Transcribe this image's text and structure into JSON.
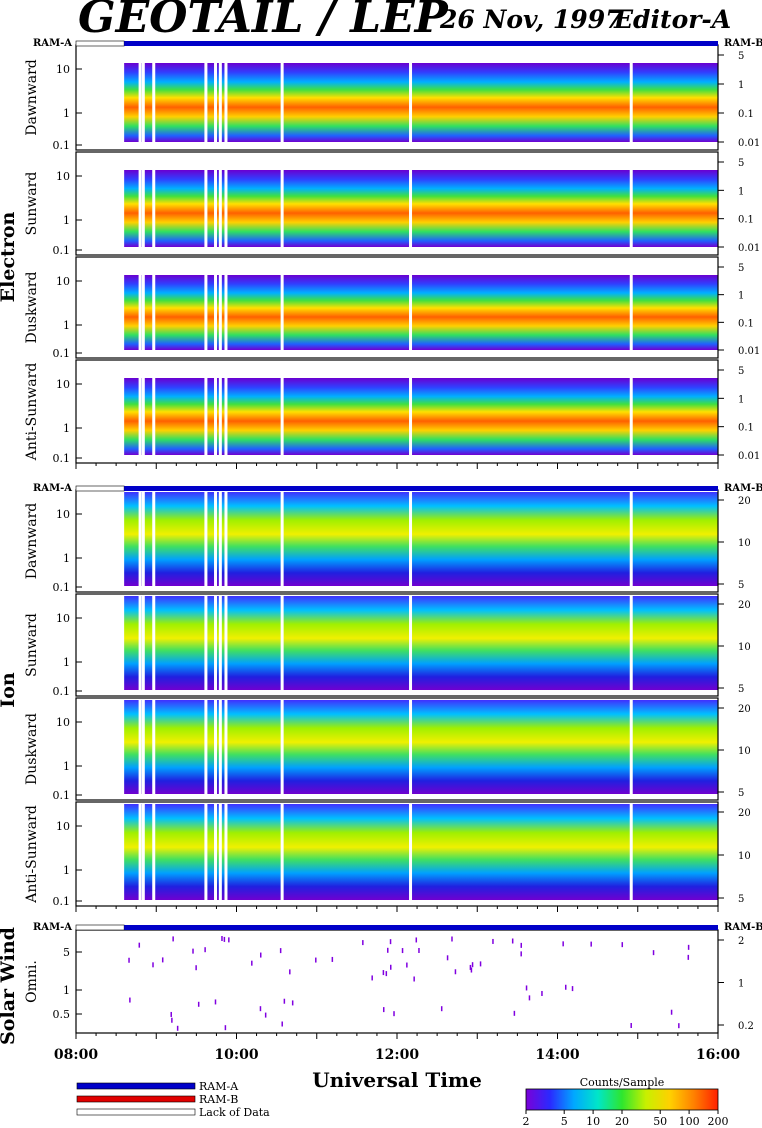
{
  "header": {
    "title": "GEOTAIL / LEP",
    "date": "26 Nov, 1997",
    "editor": "Editor-A"
  },
  "chart_data": {
    "type": "heatmap",
    "xlabel": "Universal Time",
    "x_ticks": [
      "08:00",
      "10:00",
      "12:00",
      "14:00",
      "16:00"
    ],
    "xlim_hours": [
      8,
      16
    ],
    "ram_labels": {
      "left": "RAM-A",
      "right": "RAM-B"
    },
    "groups": [
      {
        "name": "Electron",
        "panels": [
          {
            "label": "Dawnward",
            "left_ticks": [
              "10",
              "1",
              "0.1"
            ],
            "right_ticks": [
              "5",
              "1",
              "0.1",
              "0.01"
            ]
          },
          {
            "label": "Sunward",
            "left_ticks": [
              "10",
              "1",
              "0.1"
            ],
            "right_ticks": [
              "5",
              "1",
              "0.1",
              "0.01"
            ]
          },
          {
            "label": "Duskward",
            "left_ticks": [
              "10",
              "1",
              "0.1"
            ],
            "right_ticks": [
              "5",
              "1",
              "0.1",
              "0.01"
            ]
          },
          {
            "label": "Anti-Sunward",
            "left_ticks": [
              "10",
              "1",
              "0.1"
            ],
            "right_ticks": [
              "5",
              "1",
              "0.1",
              "0.01"
            ]
          }
        ]
      },
      {
        "name": "Ion",
        "panels": [
          {
            "label": "Dawnward",
            "left_ticks": [
              "10",
              "1",
              "0.1"
            ],
            "right_ticks": [
              "20",
              "10",
              "5"
            ]
          },
          {
            "label": "Sunward",
            "left_ticks": [
              "10",
              "1",
              "0.1"
            ],
            "right_ticks": [
              "20",
              "10",
              "5"
            ]
          },
          {
            "label": "Duskward",
            "left_ticks": [
              "10",
              "1",
              "0.1"
            ],
            "right_ticks": [
              "20",
              "10",
              "5"
            ]
          },
          {
            "label": "Anti-Sunward",
            "left_ticks": [
              "10",
              "1",
              "0.1"
            ],
            "right_ticks": [
              "20",
              "10",
              "5"
            ]
          }
        ]
      },
      {
        "name": "Solar Wind",
        "panels": [
          {
            "label": "Omni.",
            "left_ticks": [
              "5",
              "1",
              "0.5"
            ],
            "right_ticks": [
              "2",
              "1",
              "0.2"
            ]
          }
        ]
      }
    ],
    "legend": {
      "items": [
        {
          "label": "RAM-A",
          "color": "#0000c8"
        },
        {
          "label": "RAM-B",
          "color": "#e00000"
        },
        {
          "label": "Lack of Data",
          "color": "#ffffff"
        }
      ]
    },
    "colorbar": {
      "title": "Counts/Sample",
      "ticks": [
        "2",
        "5",
        "10",
        "20",
        "50",
        "100",
        "200"
      ],
      "colors": [
        "#7a00d8",
        "#2a2aff",
        "#00a8ff",
        "#00e6c8",
        "#2ee62e",
        "#c8f000",
        "#ffd000",
        "#ff8000",
        "#ff2000"
      ]
    },
    "data_start_hour": 8.6,
    "data_gaps_hours": [
      8.78,
      8.82,
      8.95,
      9.6,
      9.72,
      9.78,
      9.85,
      10.55,
      12.15,
      14.9
    ]
  }
}
